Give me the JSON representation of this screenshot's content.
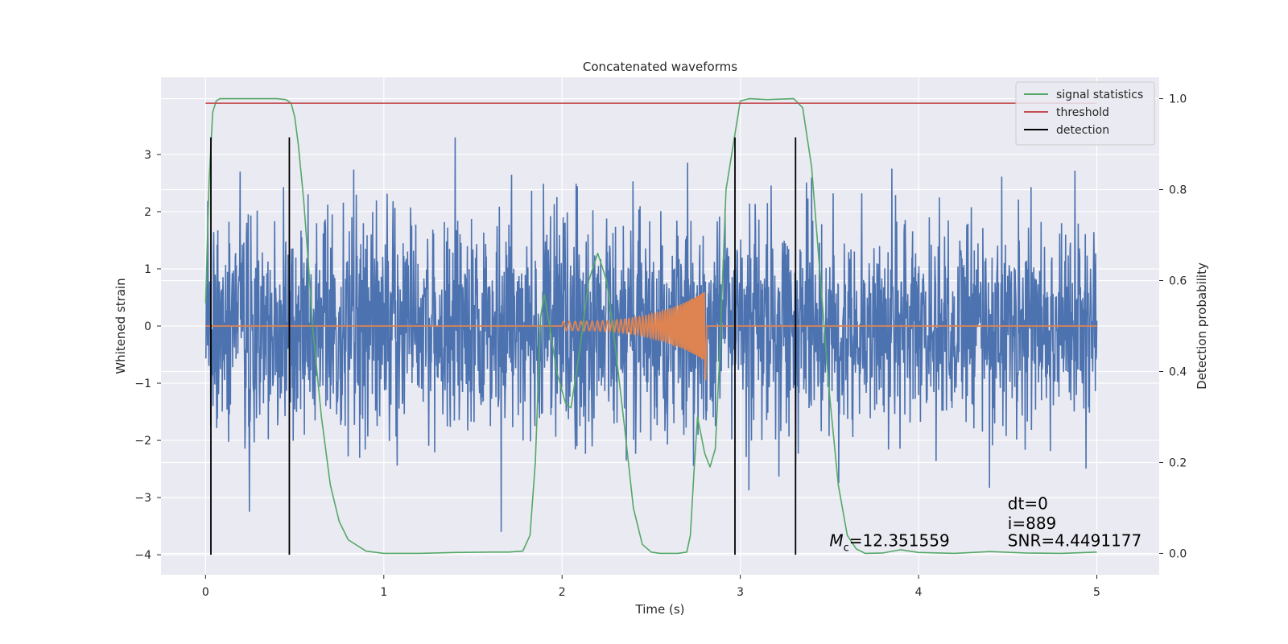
{
  "chart_data": {
    "type": "line",
    "title": "Concatenated waveforms",
    "xlabel": "Time (s)",
    "ylabel": "Whitened strain",
    "y2label": "Detection probability",
    "xlim": [
      -0.25,
      5.35
    ],
    "ylim": [
      -4.35,
      4.35
    ],
    "y2lim": [
      -0.047,
      1.047
    ],
    "xticks": [
      0,
      1,
      2,
      3,
      4,
      5
    ],
    "xtick_labels": [
      "0",
      "1",
      "2",
      "3",
      "4",
      "5"
    ],
    "yticks": [
      3,
      2,
      1,
      0,
      -1,
      -2,
      -3,
      -4
    ],
    "ytick_labels": [
      "3",
      "2",
      "1",
      "0",
      "−1",
      "−2",
      "−3",
      "−4"
    ],
    "y2ticks": [
      1.0,
      0.8,
      0.6,
      0.4,
      0.2,
      0.0
    ],
    "y2tick_labels": [
      "1.0",
      "0.8",
      "0.6",
      "0.4",
      "0.2",
      "0.0"
    ],
    "grid": true,
    "legend_position": "top-right",
    "series": [
      {
        "name": "",
        "role": "whitened strain noise (dense)",
        "axis": "left",
        "color": "#4c72b0",
        "x_range": [
          0,
          5
        ],
        "approx_envelope": {
          "lower": -2.6,
          "upper": 2.6,
          "peak_max": 3.3,
          "peak_min": -3.6
        }
      },
      {
        "name": "",
        "role": "injected chirp waveform",
        "axis": "left",
        "color": "#dd8452",
        "chirp": {
          "start": 2.0,
          "end": 2.8,
          "start_amplitude": 0.08,
          "end_amplitude": 0.6,
          "start_freq_hz": 30,
          "end_freq_hz": 120,
          "ringdown_min": -0.95
        }
      },
      {
        "name": "signal statistics",
        "axis": "right",
        "color": "#55a868",
        "x": [
          0.0,
          0.02,
          0.04,
          0.06,
          0.08,
          0.1,
          0.2,
          0.3,
          0.4,
          0.45,
          0.48,
          0.5,
          0.52,
          0.55,
          0.58,
          0.6,
          0.65,
          0.7,
          0.75,
          0.8,
          0.9,
          1.0,
          1.2,
          1.4,
          1.6,
          1.7,
          1.78,
          1.82,
          1.85,
          1.88,
          1.9,
          1.93,
          1.97,
          2.02,
          2.05,
          2.1,
          2.15,
          2.2,
          2.25,
          2.3,
          2.35,
          2.4,
          2.45,
          2.5,
          2.55,
          2.6,
          2.65,
          2.7,
          2.72,
          2.74,
          2.76,
          2.8,
          2.83,
          2.86,
          2.88,
          2.92,
          3.0,
          3.05,
          3.15,
          3.3,
          3.35,
          3.4,
          3.45,
          3.5,
          3.55,
          3.6,
          3.65,
          3.7,
          3.8,
          3.9,
          4.0,
          4.2,
          4.4,
          4.6,
          4.8,
          5.0
        ],
        "values": [
          0.55,
          0.82,
          0.97,
          0.995,
          1.0,
          1.0,
          1.0,
          1.0,
          1.0,
          0.998,
          0.99,
          0.96,
          0.9,
          0.78,
          0.62,
          0.5,
          0.3,
          0.15,
          0.07,
          0.03,
          0.005,
          0.0,
          0.0,
          0.002,
          0.003,
          0.003,
          0.005,
          0.04,
          0.2,
          0.52,
          0.57,
          0.5,
          0.4,
          0.33,
          0.32,
          0.45,
          0.6,
          0.66,
          0.6,
          0.45,
          0.28,
          0.1,
          0.02,
          0.003,
          0.0,
          0.0,
          0.0,
          0.003,
          0.04,
          0.18,
          0.3,
          0.22,
          0.19,
          0.23,
          0.4,
          0.8,
          0.995,
          1.0,
          0.998,
          1.0,
          0.98,
          0.85,
          0.6,
          0.35,
          0.15,
          0.04,
          0.01,
          0.0,
          0.001,
          0.008,
          0.002,
          0.0,
          0.004,
          0.001,
          0.0,
          0.003
        ]
      },
      {
        "name": "threshold",
        "axis": "right",
        "color": "#c44e52",
        "x": [
          0,
          5
        ],
        "values": [
          0.99,
          0.99
        ]
      },
      {
        "name": "detection",
        "axis": "left",
        "color": "#000000",
        "type": "vlines",
        "x": [
          0.03,
          0.47,
          2.97,
          3.31
        ],
        "y_range": [
          -4.0,
          3.3
        ]
      }
    ],
    "annotations": [
      {
        "text_math": "M",
        "text_sub": "c",
        "text": "=12.351559",
        "x": 3.5,
        "y": -3.85
      },
      {
        "text": "dt=0",
        "x": 4.5,
        "y": -3.2
      },
      {
        "text": "i=889",
        "x": 4.5,
        "y": -3.55
      },
      {
        "text": "SNR=4.4491177",
        "x": 4.5,
        "y": -3.85
      }
    ]
  }
}
